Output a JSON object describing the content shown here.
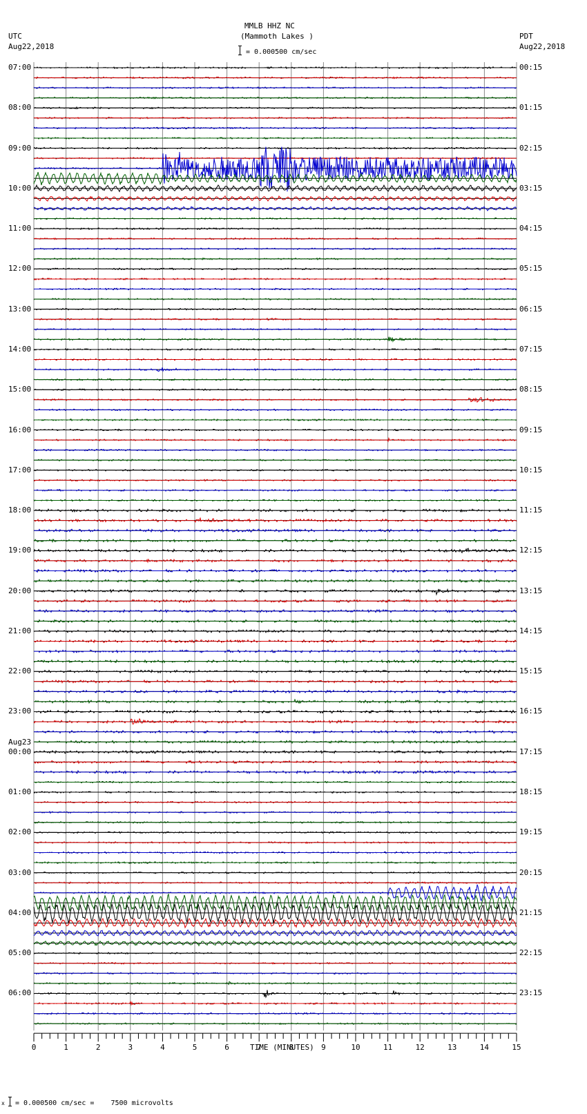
{
  "header": {
    "title": "MMLB HHZ NC",
    "subtitle": "(Mammoth Lakes )",
    "scale_text": "= 0.000500 cm/sec",
    "left_tz": "UTC",
    "left_date": "Aug22,2018",
    "right_tz": "PDT",
    "right_date": "Aug22,2018"
  },
  "footer": {
    "scale_text": "= 0.000500 cm/sec =    7500 microvolts",
    "marker": "x"
  },
  "colors": {
    "trace": [
      "#000000",
      "#e00000",
      "#0000d0",
      "#006000"
    ],
    "grid": "#888888",
    "baseline": "#000000"
  },
  "chart_data": {
    "type": "line",
    "title": "MMLB HHZ NC (Mammoth Lakes )",
    "xlabel": "TIME (MINUTES)",
    "ylabel": "",
    "x_ticks": [
      "0",
      "1",
      "2",
      "3",
      "4",
      "5",
      "6",
      "7",
      "8",
      "9",
      "10",
      "11",
      "12",
      "13",
      "14",
      "15"
    ],
    "xlim": [
      0,
      15
    ],
    "grid": true,
    "rows_per_hour": 4,
    "minutes_per_row": 15,
    "left_labels": [
      {
        "row": 0,
        "text": "07:00"
      },
      {
        "row": 4,
        "text": "08:00"
      },
      {
        "row": 8,
        "text": "09:00"
      },
      {
        "row": 12,
        "text": "10:00"
      },
      {
        "row": 16,
        "text": "11:00"
      },
      {
        "row": 20,
        "text": "12:00"
      },
      {
        "row": 24,
        "text": "13:00"
      },
      {
        "row": 28,
        "text": "14:00"
      },
      {
        "row": 32,
        "text": "15:00"
      },
      {
        "row": 36,
        "text": "16:00"
      },
      {
        "row": 40,
        "text": "17:00"
      },
      {
        "row": 44,
        "text": "18:00"
      },
      {
        "row": 48,
        "text": "19:00"
      },
      {
        "row": 52,
        "text": "20:00"
      },
      {
        "row": 56,
        "text": "21:00"
      },
      {
        "row": 60,
        "text": "22:00"
      },
      {
        "row": 64,
        "text": "23:00"
      },
      {
        "row": 68,
        "text": "00:00",
        "date": "Aug23"
      },
      {
        "row": 72,
        "text": "01:00"
      },
      {
        "row": 76,
        "text": "02:00"
      },
      {
        "row": 80,
        "text": "03:00"
      },
      {
        "row": 84,
        "text": "04:00"
      },
      {
        "row": 88,
        "text": "05:00"
      },
      {
        "row": 92,
        "text": "06:00"
      }
    ],
    "right_labels": [
      {
        "row": 0,
        "text": "00:15"
      },
      {
        "row": 4,
        "text": "01:15"
      },
      {
        "row": 8,
        "text": "02:15"
      },
      {
        "row": 12,
        "text": "03:15"
      },
      {
        "row": 16,
        "text": "04:15"
      },
      {
        "row": 20,
        "text": "05:15"
      },
      {
        "row": 24,
        "text": "06:15"
      },
      {
        "row": 28,
        "text": "07:15"
      },
      {
        "row": 32,
        "text": "08:15"
      },
      {
        "row": 36,
        "text": "09:15"
      },
      {
        "row": 40,
        "text": "10:15"
      },
      {
        "row": 44,
        "text": "11:15"
      },
      {
        "row": 48,
        "text": "12:15"
      },
      {
        "row": 52,
        "text": "13:15"
      },
      {
        "row": 56,
        "text": "14:15"
      },
      {
        "row": 60,
        "text": "15:15"
      },
      {
        "row": 64,
        "text": "16:15"
      },
      {
        "row": 68,
        "text": "17:15"
      },
      {
        "row": 72,
        "text": "18:15"
      },
      {
        "row": 76,
        "text": "19:15"
      },
      {
        "row": 80,
        "text": "20:15"
      },
      {
        "row": 84,
        "text": "21:15"
      },
      {
        "row": 88,
        "text": "22:15"
      },
      {
        "row": 92,
        "text": "23:15"
      }
    ],
    "total_rows": 96,
    "events": [
      {
        "row": 10,
        "start_min": 4.0,
        "end_min": 15.0,
        "amp": 24,
        "kind": "large",
        "desc": "M? earthquake blue trace 09:30 UTC, clipped spikes at 4.0, 7.0-8.0 min"
      },
      {
        "row": 11,
        "start_min": 0.0,
        "end_min": 4.0,
        "amp": 9,
        "kind": "longperiod"
      },
      {
        "row": 11,
        "start_min": 4.0,
        "end_min": 15.0,
        "amp": 6,
        "kind": "longperiod"
      },
      {
        "row": 12,
        "start_min": 0.0,
        "end_min": 15.0,
        "amp": 4,
        "kind": "longperiod"
      },
      {
        "row": 13,
        "start_min": 0.0,
        "end_min": 15.0,
        "amp": 3,
        "kind": "longperiod"
      },
      {
        "row": 14,
        "start_min": 0.0,
        "end_min": 15.0,
        "amp": 2,
        "kind": "longperiod"
      },
      {
        "row": 25,
        "start_min": 7.2,
        "end_min": 7.6,
        "amp": 2,
        "kind": "burst"
      },
      {
        "row": 27,
        "start_min": 11.0,
        "end_min": 12.0,
        "amp": 4,
        "kind": "burst"
      },
      {
        "row": 30,
        "start_min": 3.8,
        "end_min": 4.6,
        "amp": 4,
        "kind": "burst"
      },
      {
        "row": 33,
        "start_min": 13.5,
        "end_min": 15.0,
        "amp": 5,
        "kind": "burst"
      },
      {
        "row": 37,
        "start_min": 11.0,
        "end_min": 11.3,
        "amp": 4,
        "kind": "burst"
      },
      {
        "row": 45,
        "start_min": 5.0,
        "end_min": 7.0,
        "amp": 3,
        "kind": "burst"
      },
      {
        "row": 48,
        "start_min": 13.3,
        "end_min": 14.2,
        "amp": 4,
        "kind": "burst"
      },
      {
        "row": 49,
        "start_min": 3.4,
        "end_min": 4.0,
        "amp": 4,
        "kind": "burst"
      },
      {
        "row": 52,
        "start_min": 12.5,
        "end_min": 13.2,
        "amp": 4,
        "kind": "burst"
      },
      {
        "row": 63,
        "start_min": 8.1,
        "end_min": 8.5,
        "amp": 5,
        "kind": "burst"
      },
      {
        "row": 65,
        "start_min": 3.0,
        "end_min": 4.0,
        "amp": 5,
        "kind": "burst"
      },
      {
        "row": 82,
        "start_min": 11.0,
        "end_min": 15.0,
        "amp": 10,
        "kind": "longperiod"
      },
      {
        "row": 82,
        "start_min": 13.5,
        "end_min": 15.0,
        "amp": 6,
        "kind": "burst"
      },
      {
        "row": 83,
        "start_min": 0.0,
        "end_min": 15.0,
        "amp": 12,
        "kind": "longperiod"
      },
      {
        "row": 84,
        "start_min": 0.0,
        "end_min": 15.0,
        "amp": 14,
        "kind": "longperiod"
      },
      {
        "row": 85,
        "start_min": 0.0,
        "end_min": 15.0,
        "amp": 6,
        "kind": "longperiod"
      },
      {
        "row": 86,
        "start_min": 0.0,
        "end_min": 15.0,
        "amp": 4,
        "kind": "longperiod"
      },
      {
        "row": 87,
        "start_min": 0.0,
        "end_min": 15.0,
        "amp": 3,
        "kind": "longperiod"
      },
      {
        "row": 91,
        "start_min": 6.05,
        "end_min": 6.2,
        "amp": 4,
        "kind": "burst"
      },
      {
        "row": 92,
        "start_min": 7.15,
        "end_min": 7.6,
        "amp": 14,
        "kind": "spike"
      },
      {
        "row": 92,
        "start_min": 9.6,
        "end_min": 9.75,
        "amp": 3,
        "kind": "burst"
      },
      {
        "row": 92,
        "start_min": 11.15,
        "end_min": 11.4,
        "amp": 5,
        "kind": "burst"
      },
      {
        "row": 93,
        "start_min": 3.0,
        "end_min": 3.2,
        "amp": 6,
        "kind": "burst"
      }
    ]
  }
}
